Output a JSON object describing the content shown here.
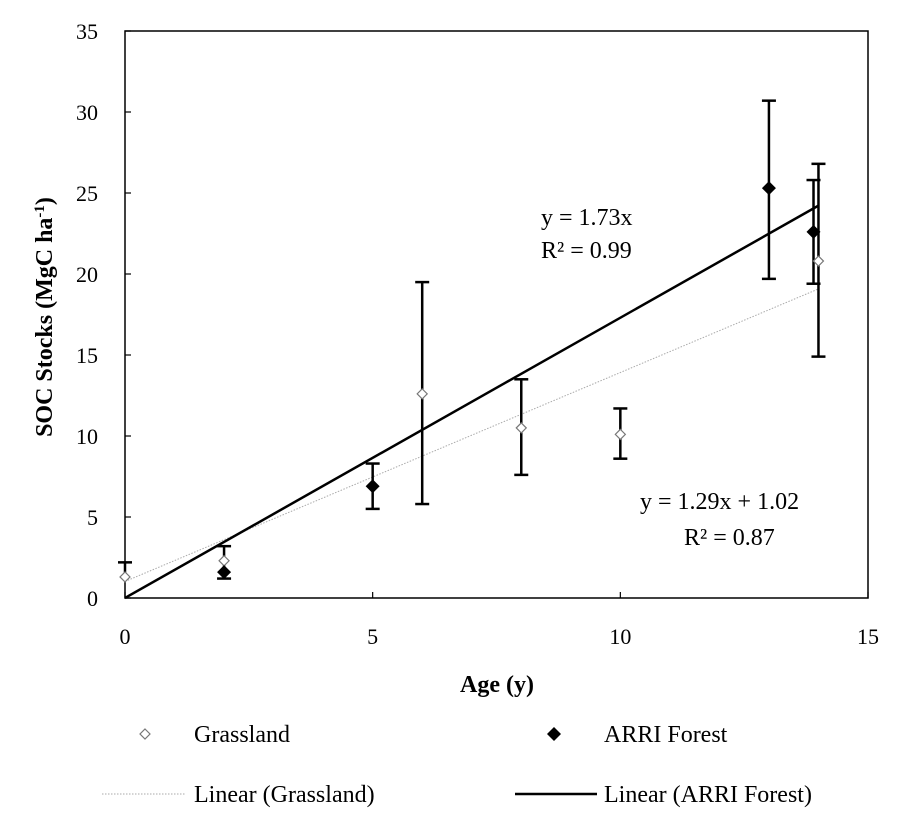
{
  "chart_data": {
    "type": "scatter",
    "title": "",
    "xlabel": "Age (y)",
    "ylabel": "SOC Stocks (MgC ha",
    "ylabel_sup": "-1",
    "ylabel_close": ")",
    "xlim": [
      0,
      15
    ],
    "ylim": [
      0,
      35
    ],
    "xticks": [
      0,
      5,
      10,
      15
    ],
    "yticks": [
      0,
      5,
      10,
      15,
      20,
      25,
      30,
      35
    ],
    "grid": false,
    "series": [
      {
        "name": "Grassland",
        "marker": "open-diamond",
        "color": "#777777",
        "points": [
          {
            "x": 0,
            "y": 1.3,
            "err_low": null,
            "err_high": 2.2
          },
          {
            "x": 2,
            "y": 2.3,
            "err_low": null,
            "err_high": null
          },
          {
            "x": 6,
            "y": 12.6,
            "err_low": 5.8,
            "err_high": 19.5
          },
          {
            "x": 8,
            "y": 10.5,
            "err_low": 7.6,
            "err_high": 13.5
          },
          {
            "x": 10,
            "y": 10.1,
            "err_low": 8.6,
            "err_high": 11.7
          },
          {
            "x": 14,
            "y": 20.8,
            "err_low": 14.9,
            "err_high": 26.8
          }
        ]
      },
      {
        "name": "ARRI Forest",
        "marker": "filled-diamond",
        "color": "#000000",
        "points": [
          {
            "x": 2,
            "y": 1.6,
            "err_low": 1.2,
            "err_high": 3.2
          },
          {
            "x": 5,
            "y": 6.9,
            "err_low": 5.5,
            "err_high": 8.3
          },
          {
            "x": 13,
            "y": 25.3,
            "err_low": 19.7,
            "err_high": 30.7
          },
          {
            "x": 13.9,
            "y": 22.6,
            "err_low": 19.4,
            "err_high": 25.8
          }
        ]
      }
    ],
    "trendlines": [
      {
        "name": "Linear (Grassland)",
        "slope": 1.29,
        "intercept": 1.02,
        "x_range": [
          0,
          14
        ],
        "style": "dotted-gray"
      },
      {
        "name": "Linear (ARRI Forest)",
        "slope": 1.73,
        "intercept": 0,
        "x_range": [
          0,
          14
        ],
        "style": "solid-black"
      }
    ],
    "annotations": {
      "forest_eq": "y = 1.73x",
      "forest_r2": "R² = 0.99",
      "grass_eq": "y = 1.29x + 1.02",
      "grass_r2": "R² = 0.87"
    },
    "legend": {
      "placement": "bottom",
      "entries": [
        "Grassland",
        "ARRI Forest",
        "Linear (Grassland)",
        "Linear (ARRI Forest)"
      ]
    }
  }
}
